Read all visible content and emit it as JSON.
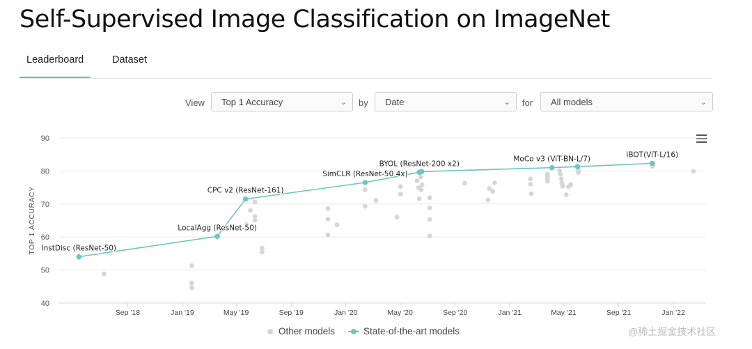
{
  "page_title": "Self-Supervised Image Classification on ImageNet",
  "tabs": [
    {
      "label": "Leaderboard",
      "active": true
    },
    {
      "label": "Dataset",
      "active": false
    }
  ],
  "controls": {
    "view_label": "View",
    "view_value": "Top 1 Accuracy",
    "by_label": "by",
    "by_value": "Date",
    "for_label": "for",
    "for_value": "All models"
  },
  "menu_icon": "hamburger-menu-icon",
  "legend": {
    "other_label": "Other models",
    "sota_label": "State-of-the-art models"
  },
  "watermark": "@稀土掘金技术社区",
  "colors": {
    "sota": "#6cc6c2",
    "other": "#d6d6d6",
    "tab_accent": "#5cc2bf"
  },
  "chart_data": {
    "type": "scatter",
    "title": "",
    "xlabel": "",
    "ylabel": "TOP 1 ACCURACY",
    "ylim": [
      40,
      90
    ],
    "yticks": [
      40,
      50,
      60,
      70,
      80,
      90
    ],
    "xlim": [
      "2018-04-01",
      "2022-03-15"
    ],
    "xticks": [
      {
        "label": "Sep '18",
        "date": "2018-09-01"
      },
      {
        "label": "Jan '19",
        "date": "2019-01-01"
      },
      {
        "label": "May '19",
        "date": "2019-05-01"
      },
      {
        "label": "Sep '19",
        "date": "2019-09-01"
      },
      {
        "label": "Jan '20",
        "date": "2020-01-01"
      },
      {
        "label": "May '20",
        "date": "2020-05-01"
      },
      {
        "label": "Sep '20",
        "date": "2020-09-01"
      },
      {
        "label": "Jan '21",
        "date": "2021-01-01"
      },
      {
        "label": "May '21",
        "date": "2021-05-01"
      },
      {
        "label": "Sep '21",
        "date": "2021-09-01"
      },
      {
        "label": "Jan '22",
        "date": "2022-01-01"
      }
    ],
    "grid": true,
    "legend_position": "bottom",
    "series": [
      {
        "name": "State-of-the-art models",
        "line": true,
        "points": [
          {
            "x": "2018-05-15",
            "y": 54.0,
            "label": "InstDisc (ResNet-50)"
          },
          {
            "x": "2019-03-20",
            "y": 60.2,
            "label": "LocalAgg (ResNet-50)"
          },
          {
            "x": "2019-05-22",
            "y": 71.5,
            "label": "CPC v2 (ResNet-161)"
          },
          {
            "x": "2020-02-13",
            "y": 76.5,
            "label": "SimCLR (ResNet-50 4x)"
          },
          {
            "x": "2020-06-13",
            "y": 79.6,
            "label": "BYOL (ResNet-200 x2)"
          },
          {
            "x": "2020-06-18",
            "y": 79.8,
            "label": ""
          },
          {
            "x": "2021-04-05",
            "y": 81.0,
            "label": "MoCo v3 (ViT-BN-L/7)"
          },
          {
            "x": "2021-06-01",
            "y": 81.3,
            "label": ""
          },
          {
            "x": "2021-11-15",
            "y": 82.3,
            "label": "iBOT(ViT-L/16)"
          }
        ]
      },
      {
        "name": "Other models",
        "line": false,
        "points": [
          {
            "x": "2018-07-10",
            "y": 48.8
          },
          {
            "x": "2019-01-22",
            "y": 51.3
          },
          {
            "x": "2019-01-22",
            "y": 46.1
          },
          {
            "x": "2019-01-22",
            "y": 44.6
          },
          {
            "x": "2019-05-24",
            "y": 63.8
          },
          {
            "x": "2019-06-02",
            "y": 68.0
          },
          {
            "x": "2019-06-06",
            "y": 63.4
          },
          {
            "x": "2019-06-12",
            "y": 70.6
          },
          {
            "x": "2019-06-12",
            "y": 66.2
          },
          {
            "x": "2019-06-12",
            "y": 65.1
          },
          {
            "x": "2019-06-28",
            "y": 56.6
          },
          {
            "x": "2019-06-28",
            "y": 55.4
          },
          {
            "x": "2019-11-22",
            "y": 68.6
          },
          {
            "x": "2019-11-22",
            "y": 65.4
          },
          {
            "x": "2019-11-22",
            "y": 60.6
          },
          {
            "x": "2019-12-12",
            "y": 63.7
          },
          {
            "x": "2020-02-13",
            "y": 74.3
          },
          {
            "x": "2020-02-13",
            "y": 69.3
          },
          {
            "x": "2020-03-08",
            "y": 71.1
          },
          {
            "x": "2020-04-24",
            "y": 66.0
          },
          {
            "x": "2020-05-02",
            "y": 75.3
          },
          {
            "x": "2020-05-02",
            "y": 73.0
          },
          {
            "x": "2020-06-08",
            "y": 77.0
          },
          {
            "x": "2020-06-11",
            "y": 74.9
          },
          {
            "x": "2020-06-13",
            "y": 71.6
          },
          {
            "x": "2020-06-16",
            "y": 78.2
          },
          {
            "x": "2020-06-17",
            "y": 74.3
          },
          {
            "x": "2020-06-19",
            "y": 75.8
          },
          {
            "x": "2020-07-06",
            "y": 71.9
          },
          {
            "x": "2020-07-06",
            "y": 68.8
          },
          {
            "x": "2020-07-06",
            "y": 65.3
          },
          {
            "x": "2020-07-06",
            "y": 60.3
          },
          {
            "x": "2020-09-22",
            "y": 76.3
          },
          {
            "x": "2020-11-13",
            "y": 71.2
          },
          {
            "x": "2020-11-16",
            "y": 74.7
          },
          {
            "x": "2020-11-24",
            "y": 73.8
          },
          {
            "x": "2020-11-28",
            "y": 76.4
          },
          {
            "x": "2021-02-16",
            "y": 77.6
          },
          {
            "x": "2021-02-16",
            "y": 76.0
          },
          {
            "x": "2021-02-18",
            "y": 73.1
          },
          {
            "x": "2021-03-26",
            "y": 79.0
          },
          {
            "x": "2021-03-26",
            "y": 78.4
          },
          {
            "x": "2021-03-26",
            "y": 77.7
          },
          {
            "x": "2021-03-26",
            "y": 76.9
          },
          {
            "x": "2021-04-22",
            "y": 80.1
          },
          {
            "x": "2021-04-24",
            "y": 79.0
          },
          {
            "x": "2021-04-26",
            "y": 77.6
          },
          {
            "x": "2021-04-27",
            "y": 76.4
          },
          {
            "x": "2021-04-29",
            "y": 75.4
          },
          {
            "x": "2021-05-07",
            "y": 72.8
          },
          {
            "x": "2021-05-12",
            "y": 75.2
          },
          {
            "x": "2021-05-17",
            "y": 75.9
          },
          {
            "x": "2021-06-03",
            "y": 79.6
          },
          {
            "x": "2021-06-03",
            "y": 80.4
          },
          {
            "x": "2021-11-16",
            "y": 81.4
          },
          {
            "x": "2022-02-15",
            "y": 79.9
          }
        ]
      }
    ]
  }
}
